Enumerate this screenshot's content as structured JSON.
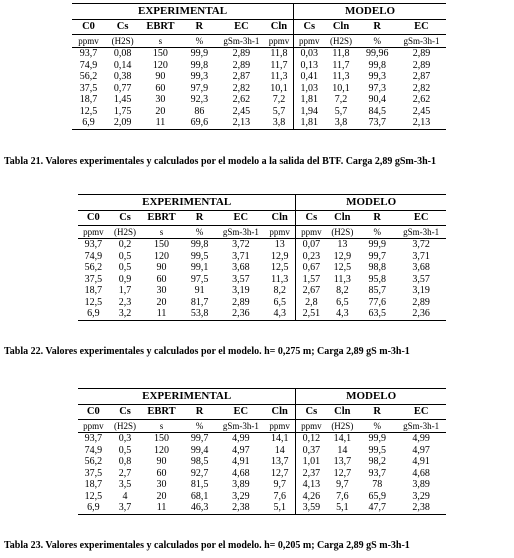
{
  "group_experimental": "EXPERIMENTAL",
  "group_modelo": "MODELO",
  "headers": [
    "C0",
    "Cs",
    "EBRT",
    "R",
    "EC",
    "Cln",
    "Cs",
    "Cln",
    "R",
    "EC"
  ],
  "units": [
    "ppmv",
    "(H2S)",
    "s",
    "%",
    "gSm-3h-1",
    "ppmv",
    "ppmv",
    "(H2S)",
    "%",
    "gSm-3h-1"
  ],
  "tables": [
    {
      "rows": [
        [
          "93,7",
          "0,08",
          "150",
          "99,9",
          "2,89",
          "11,8",
          "0,03",
          "11,8",
          "99,96",
          "2,89"
        ],
        [
          "74,9",
          "0,14",
          "120",
          "99,8",
          "2,89",
          "11,7",
          "0,13",
          "11,7",
          "99,8",
          "2,89"
        ],
        [
          "56,2",
          "0,38",
          "90",
          "99,3",
          "2,87",
          "11,3",
          "0,41",
          "11,3",
          "99,3",
          "2,87"
        ],
        [
          "37,5",
          "0,77",
          "60",
          "97,9",
          "2,82",
          "10,1",
          "1,03",
          "10,1",
          "97,3",
          "2,82"
        ],
        [
          "18,7",
          "1,45",
          "30",
          "92,3",
          "2,62",
          "7,2",
          "1,81",
          "7,2",
          "90,4",
          "2,62"
        ],
        [
          "12,5",
          "1,75",
          "20",
          "86",
          "2,45",
          "5,7",
          "1,94",
          "5,7",
          "84,5",
          "2,45"
        ],
        [
          "6,9",
          "2,09",
          "11",
          "69,6",
          "2,13",
          "3,8",
          "1,81",
          "3,8",
          "73,7",
          "2,13"
        ]
      ],
      "caption": "Tabla 21. Valores experimentales y calculados por el modelo a la salida del BTF. Carga 2,89 gSm-3h-1"
    },
    {
      "rows": [
        [
          "93,7",
          "0,2",
          "150",
          "99,8",
          "3,72",
          "13",
          "0,07",
          "13",
          "99,9",
          "3,72"
        ],
        [
          "74,9",
          "0,5",
          "120",
          "99,5",
          "3,71",
          "12,9",
          "0,23",
          "12,9",
          "99,7",
          "3,71"
        ],
        [
          "56,2",
          "0,5",
          "90",
          "99,1",
          "3,68",
          "12,5",
          "0,67",
          "12,5",
          "98,8",
          "3,68"
        ],
        [
          "37,5",
          "0,9",
          "60",
          "97,5",
          "3,57",
          "11,3",
          "1,57",
          "11,3",
          "95,8",
          "3,57"
        ],
        [
          "18,7",
          "1,7",
          "30",
          "91",
          "3,19",
          "8,2",
          "2,67",
          "8,2",
          "85,7",
          "3,19"
        ],
        [
          "12,5",
          "2,3",
          "20",
          "81,7",
          "2,89",
          "6,5",
          "2,8",
          "6,5",
          "77,6",
          "2,89"
        ],
        [
          "6,9",
          "3,2",
          "11",
          "53,8",
          "2,36",
          "4,3",
          "2,51",
          "4,3",
          "63,5",
          "2,36"
        ]
      ],
      "caption": "Tabla 22. Valores experimentales y calculados por el modelo. h= 0,275 m; Carga 2,89 gS m-3h-1"
    },
    {
      "rows": [
        [
          "93,7",
          "0,3",
          "150",
          "99,7",
          "4,99",
          "14,1",
          "0,12",
          "14,1",
          "99,9",
          "4,99"
        ],
        [
          "74,9",
          "0,5",
          "120",
          "99,4",
          "4,97",
          "14",
          "0,37",
          "14",
          "99,5",
          "4,97"
        ],
        [
          "56,2",
          "0,8",
          "90",
          "98,5",
          "4,91",
          "13,7",
          "1,01",
          "13,7",
          "98,2",
          "4,91"
        ],
        [
          "37,5",
          "2,7",
          "60",
          "92,7",
          "4,68",
          "12,7",
          "2,37",
          "12,7",
          "93,7",
          "4,68"
        ],
        [
          "18,7",
          "3,5",
          "30",
          "81,5",
          "3,89",
          "9,7",
          "4,13",
          "9,7",
          "78",
          "3,89"
        ],
        [
          "12,5",
          "4",
          "20",
          "68,1",
          "3,29",
          "7,6",
          "4,26",
          "7,6",
          "65,9",
          "3,29"
        ],
        [
          "6,9",
          "3,7",
          "11",
          "46,3",
          "2,38",
          "5,1",
          "3,59",
          "5,1",
          "47,7",
          "2,38"
        ]
      ],
      "caption": "Tabla 23. Valores experimentales y calculados por el modelo. h= 0,205 m; Carga 2,89 gS m-3h-1"
    }
  ]
}
